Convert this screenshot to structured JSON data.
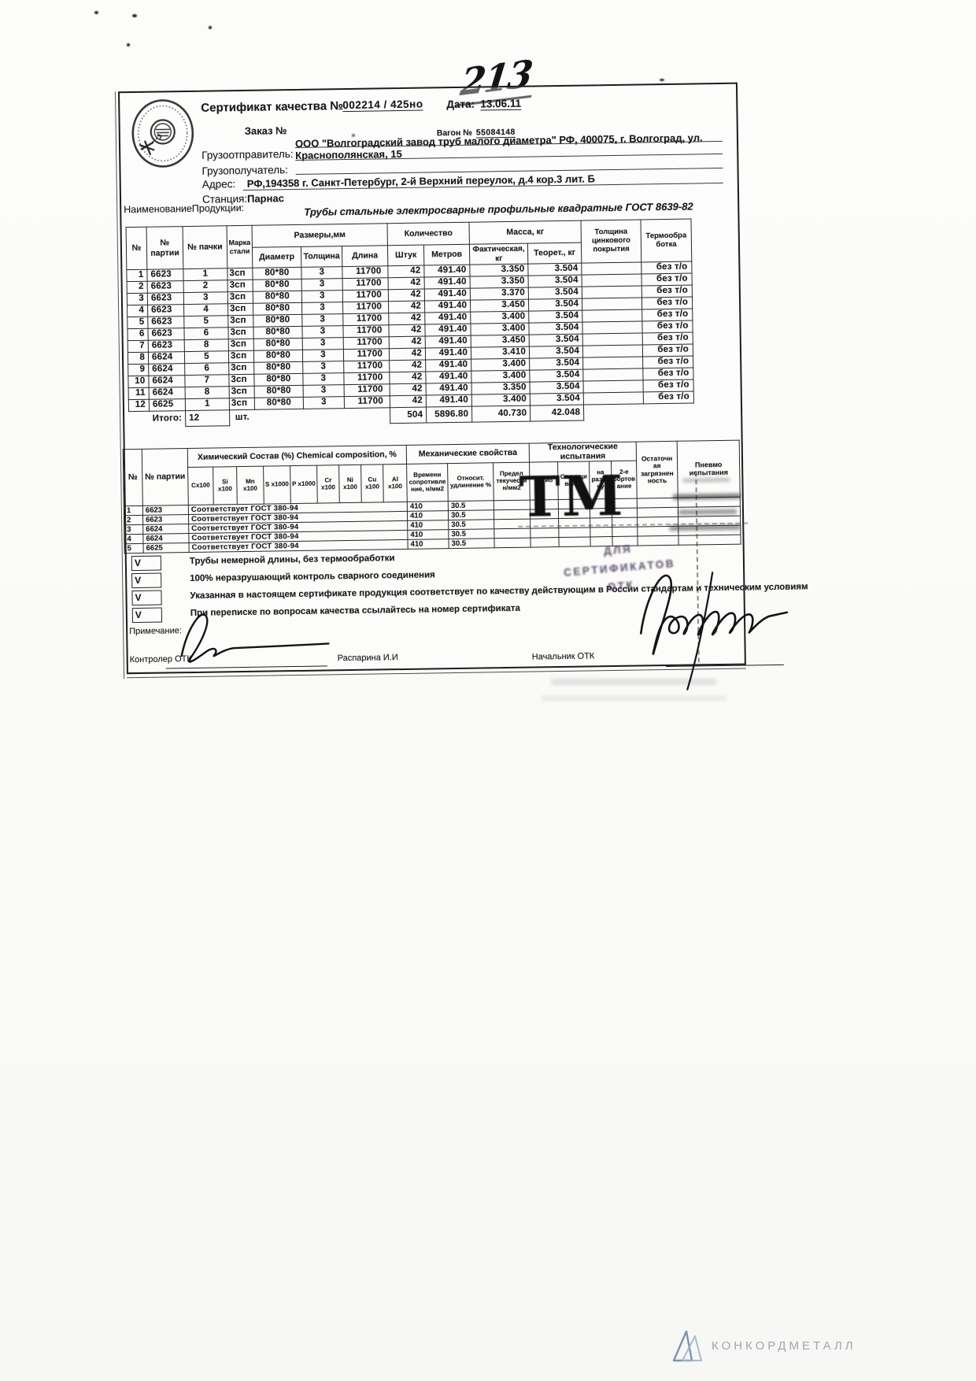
{
  "handwritten_number": "213",
  "colors": {
    "ink": "#1a1a1a",
    "stamp_purple": "#5c4c68",
    "logo_gray": "#a2a7ac",
    "logo_blue": "#7f92ad"
  },
  "header": {
    "title": "Сертификат качества №",
    "cert_number": "002214 / 425но",
    "date_label": "Дата:",
    "date_value": "13.06.11",
    "order_label": "Заказ №",
    "wagon_label": "Вагон №",
    "wagon_number": "55084148",
    "shipper_label": "Грузоотправитель:",
    "shipper_line1": "ООО \"Волгоградский завод труб малого диаметра\" РФ, 400075, г. Волгоград, ул.",
    "shipper_line2": "Краснополянская, 15",
    "consignee_label": "Грузополучатель:",
    "address_label": "Адрес:",
    "address_value": "РФ,194358 г. Санкт-Петербург,  2-й Верхний переулок, д.4 кор.3 лит. Б",
    "station_label": "Станция:",
    "station_value": "Парнас",
    "product_label": "НаименованиеПродукции:",
    "product_value": "Трубы стальные электросварные профильные  квадратные ГОСТ 8639-82"
  },
  "main_table": {
    "h": {
      "no": "№",
      "party": "№ партии",
      "pack": "№ пачки",
      "steel": "Марка стали",
      "sizes": "Размеры,мм",
      "qty": "Количество",
      "mass": "Масса, кг",
      "zinc": "Толщина цинкового покрытия",
      "heat": "Термообра ботка",
      "diameter": "Диаметр",
      "thickness": "Толщина",
      "length": "Длина",
      "pieces": "Штук",
      "meters": "Метров",
      "fact": "Фактическая, кг",
      "theor": "Теорет., кг"
    },
    "rows": [
      [
        "1",
        "6623",
        "1",
        "3сп",
        "80*80",
        "3",
        "11700",
        "42",
        "491.40",
        "3.350",
        "3.504",
        "",
        "без т/о"
      ],
      [
        "2",
        "6623",
        "2",
        "3сп",
        "80*80",
        "3",
        "11700",
        "42",
        "491.40",
        "3.350",
        "3.504",
        "",
        "без т/о"
      ],
      [
        "3",
        "6623",
        "3",
        "3сп",
        "80*80",
        "3",
        "11700",
        "42",
        "491.40",
        "3.370",
        "3.504",
        "",
        "без т/о"
      ],
      [
        "4",
        "6623",
        "4",
        "3сп",
        "80*80",
        "3",
        "11700",
        "42",
        "491.40",
        "3.450",
        "3.504",
        "",
        "без т/о"
      ],
      [
        "5",
        "6623",
        "5",
        "3сп",
        "80*80",
        "3",
        "11700",
        "42",
        "491.40",
        "3.400",
        "3.504",
        "",
        "без т/о"
      ],
      [
        "6",
        "6623",
        "6",
        "3сп",
        "80*80",
        "3",
        "11700",
        "42",
        "491.40",
        "3.400",
        "3.504",
        "",
        "без т/о"
      ],
      [
        "7",
        "6623",
        "8",
        "3сп",
        "80*80",
        "3",
        "11700",
        "42",
        "491.40",
        "3.450",
        "3.504",
        "",
        "без т/о"
      ],
      [
        "8",
        "6624",
        "5",
        "3сп",
        "80*80",
        "3",
        "11700",
        "42",
        "491.40",
        "3.410",
        "3.504",
        "",
        "без т/о"
      ],
      [
        "9",
        "6624",
        "6",
        "3сп",
        "80*80",
        "3",
        "11700",
        "42",
        "491.40",
        "3.400",
        "3.504",
        "",
        "без т/о"
      ],
      [
        "10",
        "6624",
        "7",
        "3сп",
        "80*80",
        "3",
        "11700",
        "42",
        "491.40",
        "3.400",
        "3.504",
        "",
        "без т/о"
      ],
      [
        "11",
        "6624",
        "8",
        "3сп",
        "80*80",
        "3",
        "11700",
        "42",
        "491.40",
        "3.350",
        "3.504",
        "",
        "без т/о"
      ],
      [
        "12",
        "6625",
        "1",
        "3сп",
        "80*80",
        "3",
        "11700",
        "42",
        "491.40",
        "3.400",
        "3.504",
        "",
        "без т/о"
      ]
    ],
    "total": {
      "label": "Итого:",
      "count": "12",
      "unit": "шт.",
      "pieces": "504",
      "meters": "5896.80",
      "fact": "40.730",
      "theor": "42.048"
    }
  },
  "chem_table": {
    "h": {
      "no": "№",
      "party": "№ партии",
      "chem_title": "Химический Состав (%) Chemical composition, %",
      "mech_title": "Механические свойства",
      "tech_title": "Технологические испытания",
      "residual": "Остаточн ая загрязнен ность",
      "pneumo": "Пневмо испытания"
    },
    "sub_cols": [
      "Cx100",
      "Si x100",
      "Mn x100",
      "S x1000",
      "P x1000",
      "Cr x100",
      "Ni x100",
      "Cu x100",
      "Al x100",
      "Времени сопротивле ние, н/мм2",
      "Относит. удлинение %",
      "Предел текучести н/мм2",
      "Загиб",
      "Сплющи вание",
      "на разда чу",
      "2-е бортов ание"
    ],
    "rows": [
      [
        "1",
        "6623",
        "Соответствует ГОСТ 380-94",
        "410",
        "30.5"
      ],
      [
        "2",
        "6623",
        "Соответствует ГОСТ 380-94",
        "410",
        "30.5"
      ],
      [
        "3",
        "6624",
        "Соответствует ГОСТ 380-94",
        "410",
        "30.5"
      ],
      [
        "4",
        "6624",
        "Соответствует ГОСТ 380-94",
        "410",
        "30.5"
      ],
      [
        "5",
        "6625",
        "Соответствует ГОСТ 380-94",
        "410",
        "30.5"
      ]
    ]
  },
  "notes": [
    {
      "mark": "V",
      "text": "Трубы немерной длины, без термообработки"
    },
    {
      "mark": "V",
      "text": "100% неразрушающий контроль сварного соединения"
    },
    {
      "mark": "V",
      "text": "Указанная в настоящем сертификате продукция соответствует по качеству действующим в России стандартам и техническим условиям"
    },
    {
      "mark": "V",
      "text": "При переписке по вопросам качества ссылайтесь на номер сертификата"
    }
  ],
  "footer": {
    "remark_label": "Примечание:",
    "controller_label": "Контролер ОТК",
    "controller_name": "Распарина И.И",
    "chief_label": "Начальник ОТК"
  },
  "stamps": {
    "tm": "ТМ",
    "otk_line1": "ДЛЯ",
    "otk_line2": "СЕРТИФИКАТОВ",
    "otk_line3": "ОТК"
  },
  "brand": {
    "name": "КОНКОРДМЕТАЛЛ"
  }
}
